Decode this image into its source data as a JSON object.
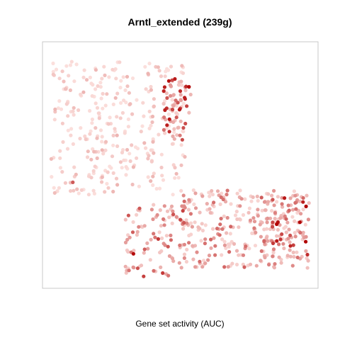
{
  "chart_data": {
    "type": "scatter",
    "title": "Arntl_extended (239g)",
    "xlabel": "Gene set activity (AUC)",
    "ylabel": "",
    "axes_visible": false,
    "grid": false,
    "legend": "none",
    "xlim": [
      0,
      100
    ],
    "ylim": [
      0,
      100
    ],
    "color_scale": {
      "low": "#fde4e1",
      "high": "#b00000",
      "meaning": "Gene set activity (AUC), 0 = low, 1 = high"
    },
    "clusters": [
      {
        "label": "upper-left-body",
        "x_range": [
          3,
          52
        ],
        "y_range": [
          38,
          92
        ],
        "n": 310,
        "activity_mean": 0.05,
        "activity_spread": 0.07
      },
      {
        "label": "right-edge-top",
        "x_range": [
          44,
          54
        ],
        "y_range": [
          60,
          86
        ],
        "n": 55,
        "activity_mean": 0.38,
        "activity_spread": 0.25
      },
      {
        "label": "lower-left-leg",
        "x_range": [
          30,
          52
        ],
        "y_range": [
          4,
          34
        ],
        "n": 95,
        "activity_mean": 0.22,
        "activity_spread": 0.22
      },
      {
        "label": "lower-right-body",
        "x_range": [
          50,
          97
        ],
        "y_range": [
          8,
          40
        ],
        "n": 270,
        "activity_mean": 0.16,
        "activity_spread": 0.18
      },
      {
        "label": "right-edge-bottom",
        "x_range": [
          78,
          97
        ],
        "y_range": [
          12,
          38
        ],
        "n": 65,
        "activity_mean": 0.42,
        "activity_spread": 0.25
      }
    ],
    "highlights": [
      {
        "x": 44,
        "y": 80,
        "activity": 0.85
      },
      {
        "x": 50,
        "y": 80,
        "activity": 0.8
      },
      {
        "x": 33,
        "y": 14,
        "activity": 0.95
      },
      {
        "x": 85,
        "y": 26,
        "activity": 1.0
      },
      {
        "x": 42,
        "y": 20,
        "activity": 0.75
      },
      {
        "x": 50,
        "y": 73,
        "activity": 0.7
      },
      {
        "x": 11,
        "y": 43,
        "activity": 0.6
      }
    ]
  }
}
